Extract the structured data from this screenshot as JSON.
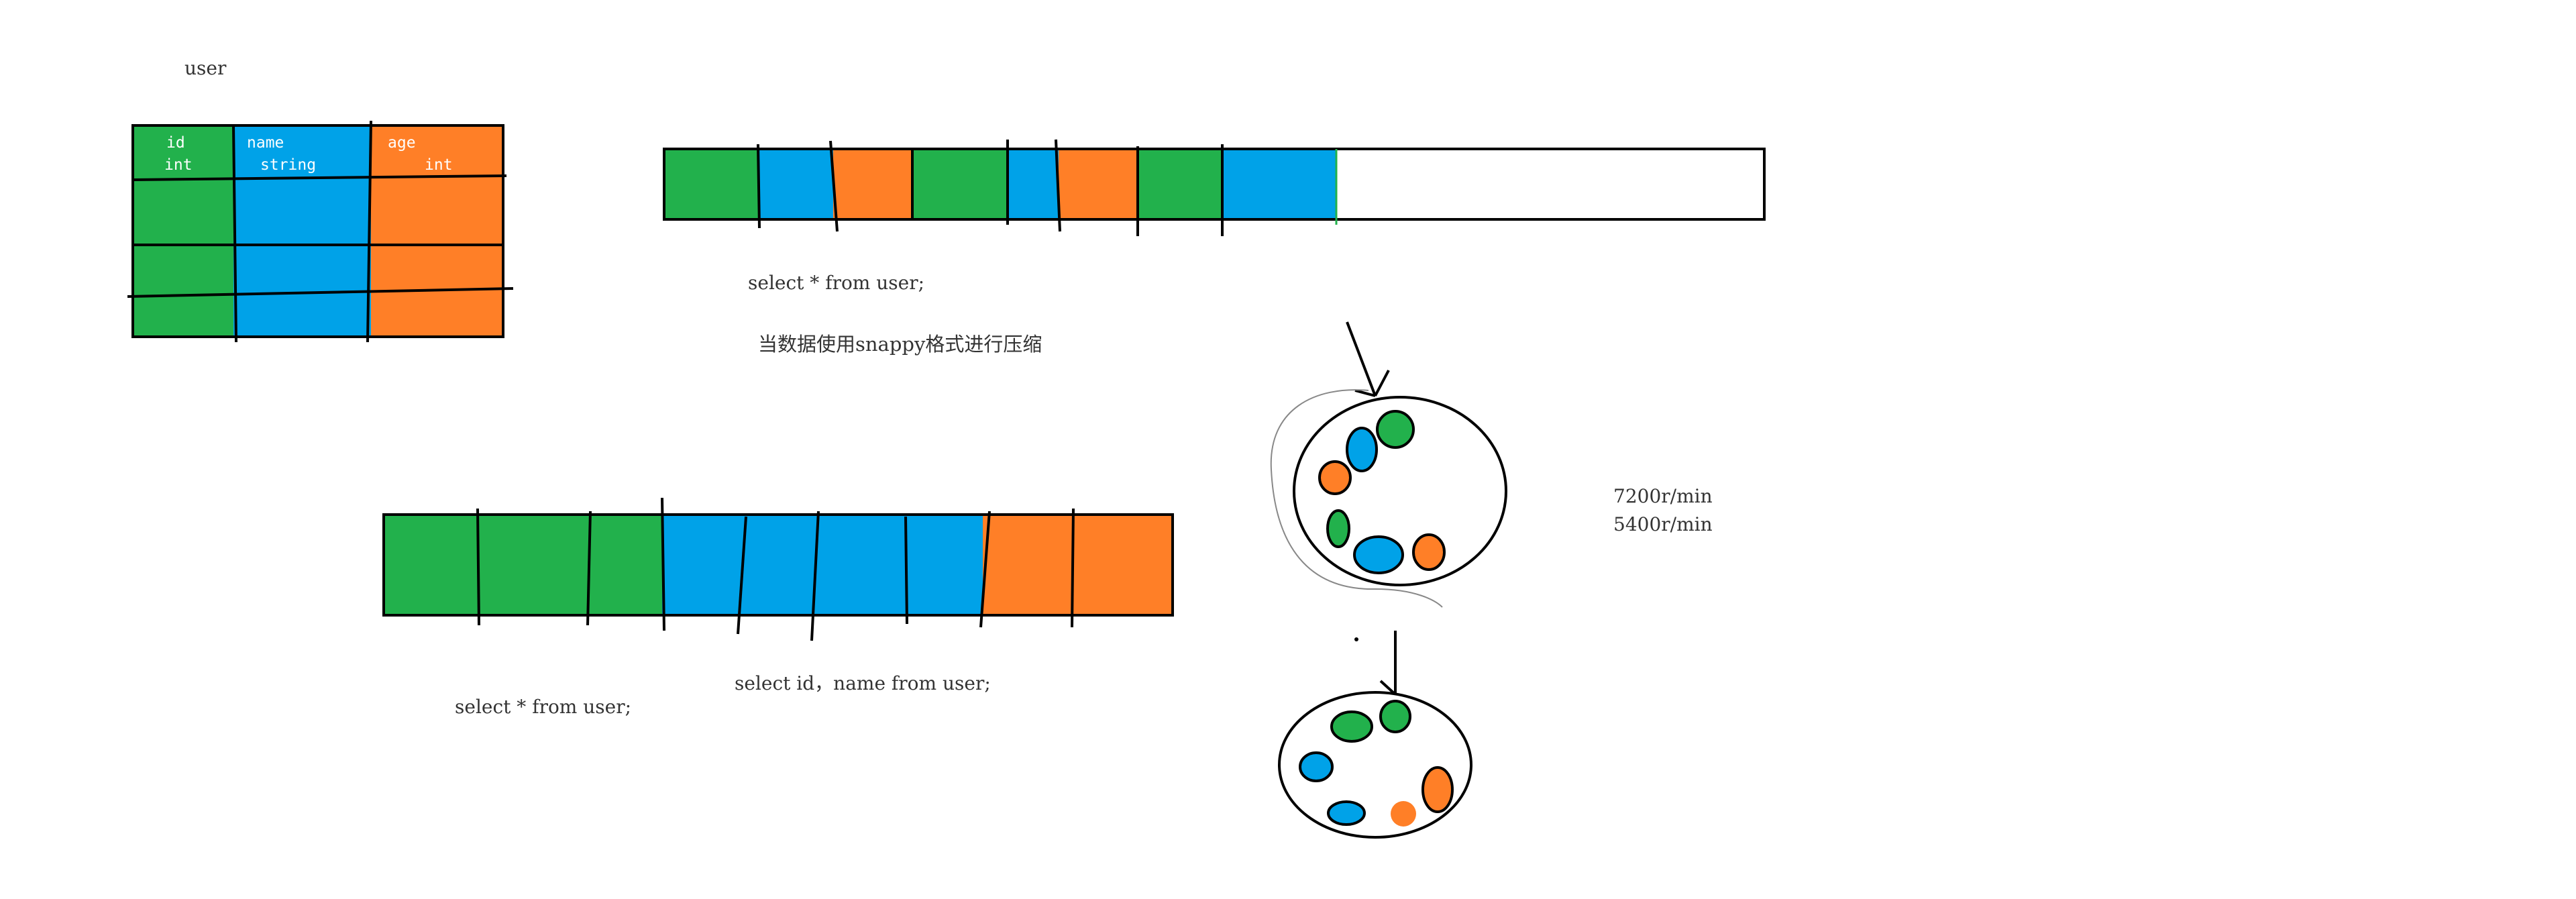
{
  "table": {
    "title": "user",
    "columns": [
      {
        "name": "id",
        "type": "int",
        "color": "#22b14c"
      },
      {
        "name": "name",
        "type": "string",
        "color": "#00a2e8"
      },
      {
        "name": "age",
        "type": "int",
        "color": "#ff7f27"
      }
    ]
  },
  "row_store": {
    "blocks": [
      "#22b14c",
      "#00a2e8",
      "#ff7f27",
      "#22b14c",
      "#00a2e8",
      "#ff7f27",
      "#22b14c",
      "#00a2e8"
    ],
    "caption": "select * from user;",
    "note": "当数据使用snappy格式进行压缩"
  },
  "column_store": {
    "caption_projection": "select  id，name  from user;",
    "caption_all": "select  * from user;"
  },
  "disk": {
    "speed_1": "7200r/min",
    "speed_2": "5400r/min"
  },
  "colors": {
    "green": "#22b14c",
    "blue": "#00a2e8",
    "orange": "#ff7f27",
    "stroke": "#000000"
  }
}
